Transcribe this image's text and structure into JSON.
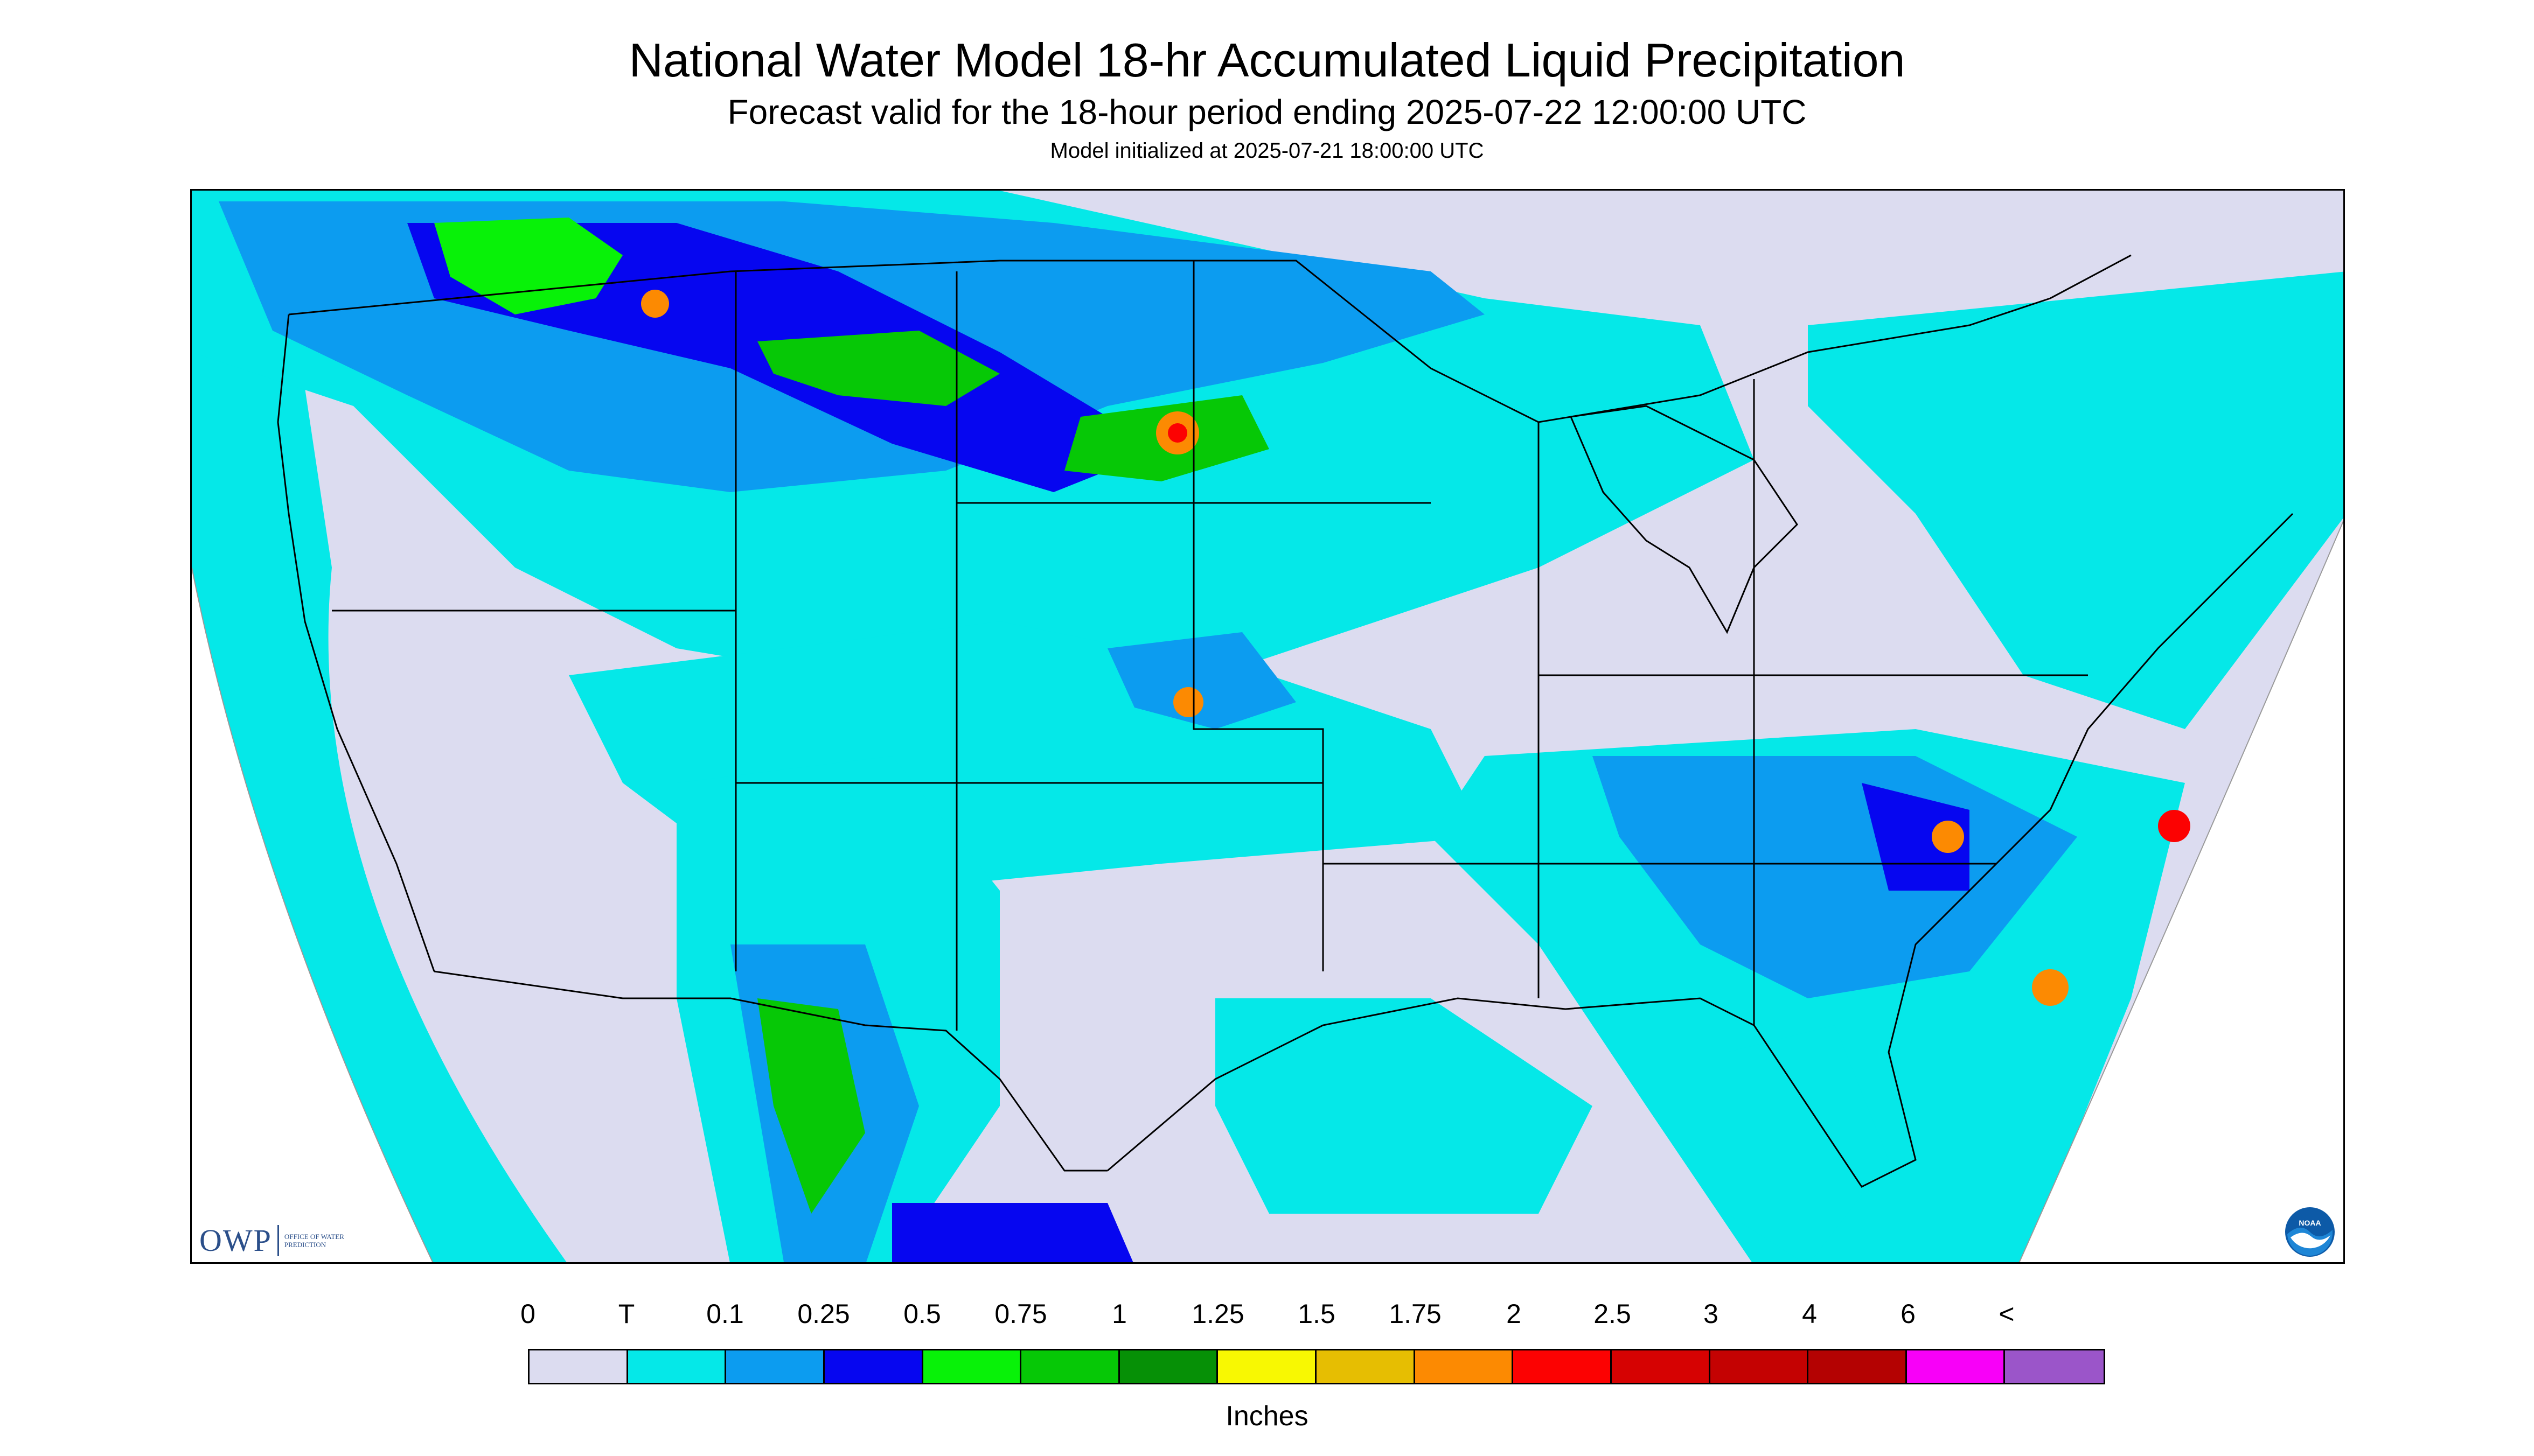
{
  "title": "National Water Model 18-hr Accumulated Liquid Precipitation",
  "subtitle": "Forecast valid for the 18-hour period ending 2025-07-22 12:00:00 UTC",
  "init_line": "Model initialized at 2025-07-21 18:00:00 UTC",
  "logos": {
    "owp_text": "OWP",
    "owp_sub": "OFFICE OF WATER PREDICTION",
    "noaa_text": "NOAA"
  },
  "legend": {
    "units": "Inches",
    "labels": [
      "0",
      "T",
      "0.1",
      "0.25",
      "0.5",
      "0.75",
      "1",
      "1.25",
      "1.5",
      "1.75",
      "2",
      "2.5",
      "3",
      "4",
      "6",
      "<"
    ],
    "colors": [
      "#dcdcf0",
      "#05e8e8",
      "#0c9cf0",
      "#0606f0",
      "#08f208",
      "#06c806",
      "#069006",
      "#f8f802",
      "#e6be02",
      "#fc8a02",
      "#fc0202",
      "#d60202",
      "#c40202",
      "#b40202",
      "#f800f8",
      "#9b55c9"
    ]
  },
  "map": {
    "background_color": "#dcdcf0",
    "outside_color": "#ffffff",
    "boundary_color": "#000000"
  }
}
